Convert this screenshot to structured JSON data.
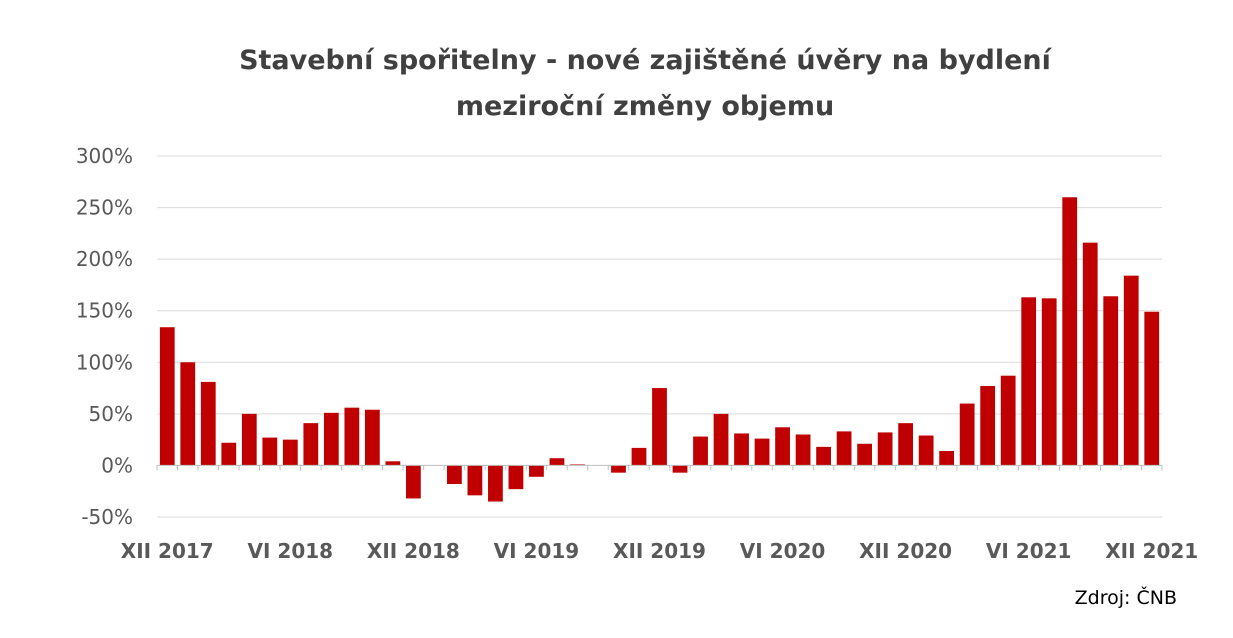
{
  "chart_title": {
    "line1": "Stavební spořitelny - nové zajištěné úvěry na bydlení",
    "line2": "meziroční změny objemu"
  },
  "source": "Zdroj: ČNB",
  "colors": {
    "bar": "#c00000",
    "grid": "#d9d9d9",
    "axis_text": "#595959",
    "title": "#404040"
  },
  "chart_data": {
    "type": "bar",
    "ylim": [
      -50,
      300
    ],
    "y_ticks": [
      -50,
      0,
      50,
      100,
      150,
      200,
      250,
      300
    ],
    "y_tick_labels": [
      "-50%",
      "0%",
      "50%",
      "100%",
      "150%",
      "200%",
      "250%",
      "300%"
    ],
    "x_tick_labels": [
      "XII 2017",
      "VI 2018",
      "XII 2018",
      "VI 2019",
      "XII 2019",
      "VI 2020",
      "XII 2020",
      "VI 2021",
      "XII 2021"
    ],
    "x_tick_label_every": 6,
    "grid": true,
    "categories": [
      "XII 2017",
      "I 2018",
      "II 2018",
      "III 2018",
      "IV 2018",
      "V 2018",
      "VI 2018",
      "VII 2018",
      "VIII 2018",
      "IX 2018",
      "X 2018",
      "XI 2018",
      "XII 2018",
      "I 2019",
      "II 2019",
      "III 2019",
      "IV 2019",
      "V 2019",
      "VI 2019",
      "VII 2019",
      "VIII 2019",
      "IX 2019",
      "X 2019",
      "XI 2019",
      "XII 2019",
      "I 2020",
      "II 2020",
      "III 2020",
      "IV 2020",
      "V 2020",
      "VI 2020",
      "VII 2020",
      "VIII 2020",
      "IX 2020",
      "X 2020",
      "XI 2020",
      "XII 2020",
      "I 2021",
      "II 2021",
      "III 2021",
      "IV 2021",
      "V 2021",
      "VI 2021",
      "VII 2021",
      "VIII 2021",
      "IX 2021",
      "X 2021",
      "XI 2021",
      "XII 2021"
    ],
    "values": [
      134,
      100,
      81,
      22,
      50,
      27,
      25,
      41,
      51,
      56,
      54,
      4,
      -32,
      0,
      -18,
      -29,
      -35,
      -23,
      -11,
      7,
      1,
      0,
      -7,
      17,
      75,
      -7,
      28,
      50,
      31,
      26,
      37,
      30,
      18,
      33,
      21,
      32,
      41,
      29,
      14,
      60,
      77,
      87,
      163,
      162,
      260,
      216,
      164,
      184,
      149
    ]
  }
}
